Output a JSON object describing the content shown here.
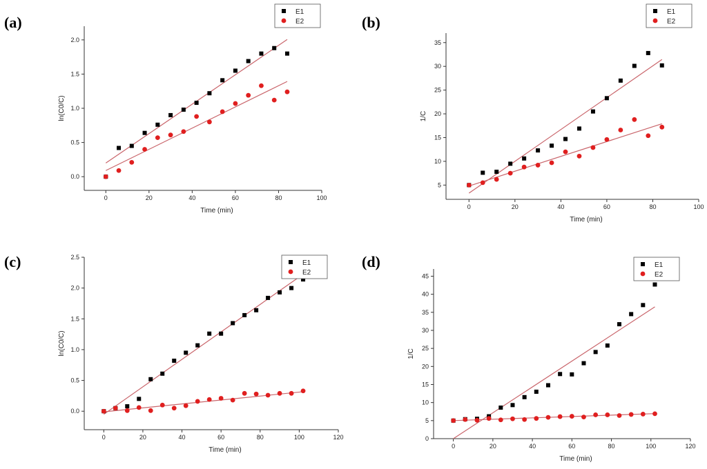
{
  "chart_data": [
    {
      "type": "scatter",
      "panel_label": "(a)",
      "xlabel": "Time (min)",
      "ylabel": "ln(C0/C)",
      "xlim": [
        -10,
        100
      ],
      "ylim": [
        -0.2,
        2.2
      ],
      "xticks": [
        0,
        20,
        40,
        60,
        80,
        100
      ],
      "yticks": [
        0.0,
        0.5,
        1.0,
        1.5,
        2.0
      ],
      "legend_position": "top-right",
      "series": [
        {
          "name": "E1",
          "marker": "square",
          "color": "#000000",
          "x": [
            0,
            6,
            12,
            18,
            24,
            30,
            36,
            42,
            48,
            54,
            60,
            66,
            72,
            78,
            84
          ],
          "y": [
            0.0,
            0.42,
            0.45,
            0.64,
            0.76,
            0.9,
            0.98,
            1.08,
            1.22,
            1.41,
            1.55,
            1.69,
            1.8,
            1.88,
            1.8
          ],
          "fit": [
            0.2,
            0.0215
          ]
        },
        {
          "name": "E2",
          "marker": "circle",
          "color": "#e01f1f",
          "x": [
            0,
            6,
            12,
            18,
            24,
            30,
            36,
            42,
            48,
            54,
            60,
            66,
            72,
            78,
            84
          ],
          "y": [
            0.0,
            0.09,
            0.21,
            0.4,
            0.57,
            0.61,
            0.66,
            0.88,
            0.8,
            0.95,
            1.07,
            1.19,
            1.33,
            1.12,
            1.24
          ],
          "fit": [
            0.09,
            0.0155
          ]
        }
      ]
    },
    {
      "type": "scatter",
      "panel_label": "(b)",
      "xlabel": "Time (min)",
      "ylabel": "1/C",
      "xlim": [
        -10,
        100
      ],
      "ylim": [
        2,
        37
      ],
      "xticks": [
        0,
        20,
        40,
        60,
        80,
        100
      ],
      "yticks": [
        5,
        10,
        15,
        20,
        25,
        30,
        35
      ],
      "legend_position": "top-right",
      "series": [
        {
          "name": "E1",
          "marker": "square",
          "color": "#000000",
          "x": [
            0,
            6,
            12,
            18,
            24,
            30,
            36,
            42,
            48,
            54,
            60,
            66,
            72,
            78,
            84
          ],
          "y": [
            5.0,
            7.6,
            7.8,
            9.5,
            10.6,
            12.3,
            13.3,
            14.7,
            16.9,
            20.5,
            23.3,
            27.0,
            30.1,
            32.8,
            30.2
          ],
          "fit": [
            3.3,
            0.335
          ]
        },
        {
          "name": "E2",
          "marker": "circle",
          "color": "#e01f1f",
          "x": [
            0,
            6,
            12,
            18,
            24,
            30,
            36,
            42,
            48,
            54,
            60,
            66,
            72,
            78,
            84
          ],
          "y": [
            5.0,
            5.5,
            6.2,
            7.5,
            8.8,
            9.2,
            9.7,
            12.0,
            11.1,
            12.9,
            14.6,
            16.6,
            18.8,
            15.4,
            17.2
          ],
          "fit": [
            4.8,
            0.156
          ]
        }
      ]
    },
    {
      "type": "scatter",
      "panel_label": "(c)",
      "xlabel": "Time (min)",
      "ylabel": "ln(C0/C)",
      "xlim": [
        -10,
        120
      ],
      "ylim": [
        -0.3,
        2.5
      ],
      "xticks": [
        0,
        20,
        40,
        60,
        80,
        100,
        120
      ],
      "yticks": [
        0.0,
        0.5,
        1.0,
        1.5,
        2.0,
        2.5
      ],
      "legend_position": "top-right",
      "series": [
        {
          "name": "E1",
          "marker": "square",
          "color": "#000000",
          "x": [
            0,
            6,
            12,
            18,
            24,
            30,
            36,
            42,
            48,
            54,
            60,
            66,
            72,
            78,
            84,
            90,
            96,
            102
          ],
          "y": [
            0.0,
            0.05,
            0.08,
            0.2,
            0.52,
            0.61,
            0.82,
            0.95,
            1.07,
            1.26,
            1.26,
            1.43,
            1.56,
            1.64,
            1.84,
            1.93,
            2.0,
            2.14
          ],
          "fit": [
            -0.05,
            0.0223
          ]
        },
        {
          "name": "E2",
          "marker": "circle",
          "color": "#e01f1f",
          "x": [
            0,
            6,
            12,
            18,
            24,
            30,
            36,
            42,
            48,
            54,
            60,
            66,
            72,
            78,
            84,
            90,
            96,
            102
          ],
          "y": [
            0.0,
            0.05,
            0.01,
            0.06,
            0.01,
            0.1,
            0.05,
            0.09,
            0.16,
            0.19,
            0.21,
            0.18,
            0.29,
            0.28,
            0.26,
            0.29,
            0.29,
            0.33
          ],
          "fit": [
            -0.01,
            0.0032
          ]
        }
      ]
    },
    {
      "type": "scatter",
      "panel_label": "(d)",
      "xlabel": "Time (min)",
      "ylabel": "1/C",
      "xlim": [
        -10,
        120
      ],
      "ylim": [
        0,
        47
      ],
      "xticks": [
        0,
        20,
        40,
        60,
        80,
        100,
        120
      ],
      "yticks": [
        0,
        5,
        10,
        15,
        20,
        25,
        30,
        35,
        40,
        45
      ],
      "legend_position": "top-right",
      "series": [
        {
          "name": "E1",
          "marker": "square",
          "color": "#000000",
          "x": [
            0,
            6,
            12,
            18,
            24,
            30,
            36,
            42,
            48,
            54,
            60,
            66,
            72,
            78,
            84,
            90,
            96,
            102
          ],
          "y": [
            5.0,
            5.4,
            5.5,
            6.2,
            8.6,
            9.3,
            11.5,
            13.0,
            14.8,
            17.9,
            17.8,
            20.9,
            24.0,
            25.8,
            31.7,
            34.5,
            37.0,
            42.7
          ],
          "fit": [
            0.0,
            0.358
          ]
        },
        {
          "name": "E2",
          "marker": "circle",
          "color": "#e01f1f",
          "x": [
            0,
            6,
            12,
            18,
            24,
            30,
            36,
            42,
            48,
            54,
            60,
            66,
            72,
            78,
            84,
            90,
            96,
            102
          ],
          "y": [
            5.0,
            5.3,
            5.1,
            5.6,
            5.2,
            5.5,
            5.3,
            5.6,
            5.9,
            6.1,
            6.2,
            6.0,
            6.6,
            6.6,
            6.4,
            6.7,
            6.8,
            6.9
          ],
          "fit": [
            5.0,
            0.019
          ]
        }
      ]
    }
  ]
}
